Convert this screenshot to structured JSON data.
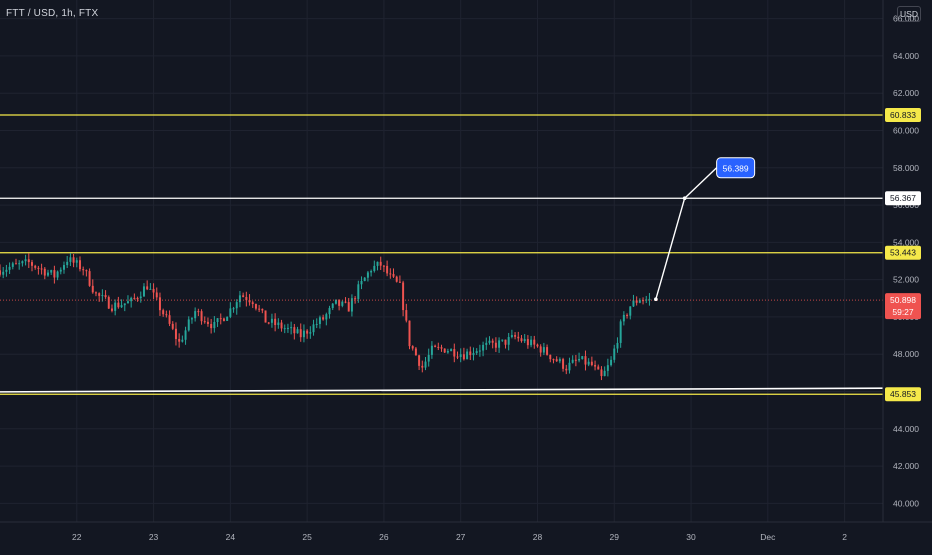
{
  "header": {
    "symbol_title": "FTT / USD, 1h, FTX",
    "currency": "USD"
  },
  "colors": {
    "background": "#131722",
    "grid": "#1f2330",
    "up": "#26a69a",
    "down": "#ef5350",
    "yellow_line": "#f5e94a",
    "white_line": "#ffffff",
    "callout": "#2962ff",
    "last_price_tag": "#ef5350"
  },
  "chart_data": {
    "type": "candlestick",
    "ylim": [
      39.0,
      67.0
    ],
    "xlim": [
      "2021-11-21 00:00",
      "2021-12-02 12:00"
    ],
    "y_ticks": [
      "40.000",
      "42.000",
      "44.000",
      "46.000",
      "48.000",
      "50.000",
      "52.000",
      "54.000",
      "56.000",
      "58.000",
      "60.000",
      "62.000",
      "64.000",
      "66.000"
    ],
    "x_ticks": [
      {
        "label": "22",
        "date": "2021-11-22"
      },
      {
        "label": "23",
        "date": "2021-11-23"
      },
      {
        "label": "24",
        "date": "2021-11-24"
      },
      {
        "label": "25",
        "date": "2021-11-25"
      },
      {
        "label": "26",
        "date": "2021-11-26"
      },
      {
        "label": "27",
        "date": "2021-11-27"
      },
      {
        "label": "28",
        "date": "2021-11-28"
      },
      {
        "label": "29",
        "date": "2021-11-29"
      },
      {
        "label": "30",
        "date": "2021-11-30"
      },
      {
        "label": "Dec",
        "date": "2021-12-01"
      },
      {
        "label": "2",
        "date": "2021-12-02"
      }
    ],
    "horizontal_levels": [
      {
        "name": "resistance-upper",
        "value": 60.833,
        "label": "60.833",
        "color": "#f5e94a"
      },
      {
        "name": "target",
        "value": 56.367,
        "label": "56.367",
        "color": "#ffffff"
      },
      {
        "name": "resistance",
        "value": 53.443,
        "label": "53.443",
        "color": "#f5e94a"
      },
      {
        "name": "support",
        "value": 45.853,
        "label": "45.853",
        "color": "#f5e94a"
      }
    ],
    "support_trendline": {
      "from": {
        "date": "2021-11-21 00:00",
        "value": 45.98
      },
      "to": {
        "date": "2021-12-02 12:00",
        "value": 46.18
      },
      "color": "#ffffff"
    },
    "projection": {
      "points": [
        {
          "date": "2021-11-29 13:00",
          "value": 50.95
        },
        {
          "date": "2021-11-29 22:00",
          "value": 56.367
        },
        {
          "date": "2021-11-30 08:00",
          "value": 58.0
        }
      ],
      "callout_label": "56.389"
    },
    "last_price": {
      "value": 50.898,
      "label": "50.898",
      "countdown": "59:27"
    },
    "anchors": [
      [
        "2021-11-21 00:00",
        52.5
      ],
      [
        "2021-11-21 10:00",
        52.9
      ],
      [
        "2021-11-21 18:00",
        52.2
      ],
      [
        "2021-11-21 22:00",
        53.1
      ],
      [
        "2021-11-22 03:00",
        52.6
      ],
      [
        "2021-11-22 07:00",
        51.2
      ],
      [
        "2021-11-22 12:00",
        50.6
      ],
      [
        "2021-11-22 18:00",
        50.8
      ],
      [
        "2021-11-22 23:00",
        51.7
      ],
      [
        "2021-11-23 04:00",
        50.2
      ],
      [
        "2021-11-23 09:00",
        48.6
      ],
      [
        "2021-11-23 14:00",
        50.3
      ],
      [
        "2021-11-23 20:00",
        49.5
      ],
      [
        "2021-11-24 01:00",
        50.4
      ],
      [
        "2021-11-24 04:00",
        51.2
      ],
      [
        "2021-11-24 08:00",
        50.9
      ],
      [
        "2021-11-24 12:00",
        49.8
      ],
      [
        "2021-11-24 18:00",
        49.4
      ],
      [
        "2021-11-24 23:00",
        49.0
      ],
      [
        "2021-11-25 02:00",
        49.4
      ],
      [
        "2021-11-25 06:00",
        49.9
      ],
      [
        "2021-11-25 10:00",
        50.7
      ],
      [
        "2021-11-25 14:00",
        50.5
      ],
      [
        "2021-11-25 17:00",
        51.5
      ],
      [
        "2021-11-25 21:00",
        52.6
      ],
      [
        "2021-11-26 00:00",
        52.8
      ],
      [
        "2021-11-26 03:00",
        52.1
      ],
      [
        "2021-11-26 06:00",
        51.6
      ],
      [
        "2021-11-26 09:00",
        48.6
      ],
      [
        "2021-11-26 13:00",
        47.3
      ],
      [
        "2021-11-26 16:00",
        48.2
      ],
      [
        "2021-11-26 20:00",
        48.3
      ],
      [
        "2021-11-27 02:00",
        48.0
      ],
      [
        "2021-11-27 08:00",
        48.4
      ],
      [
        "2021-11-27 14:00",
        48.6
      ],
      [
        "2021-11-27 18:00",
        48.9
      ],
      [
        "2021-11-27 21:00",
        48.7
      ],
      [
        "2021-11-28 02:00",
        48.3
      ],
      [
        "2021-11-28 06:00",
        47.8
      ],
      [
        "2021-11-28 10:00",
        47.3
      ],
      [
        "2021-11-28 14:00",
        47.7
      ],
      [
        "2021-11-28 18:00",
        47.4
      ],
      [
        "2021-11-28 21:00",
        46.7
      ],
      [
        "2021-11-29 00:00",
        47.6
      ],
      [
        "2021-11-29 03:00",
        49.5
      ],
      [
        "2021-11-29 06:00",
        50.6
      ],
      [
        "2021-11-29 09:00",
        51.0
      ],
      [
        "2021-11-29 12:00",
        50.9
      ]
    ]
  }
}
